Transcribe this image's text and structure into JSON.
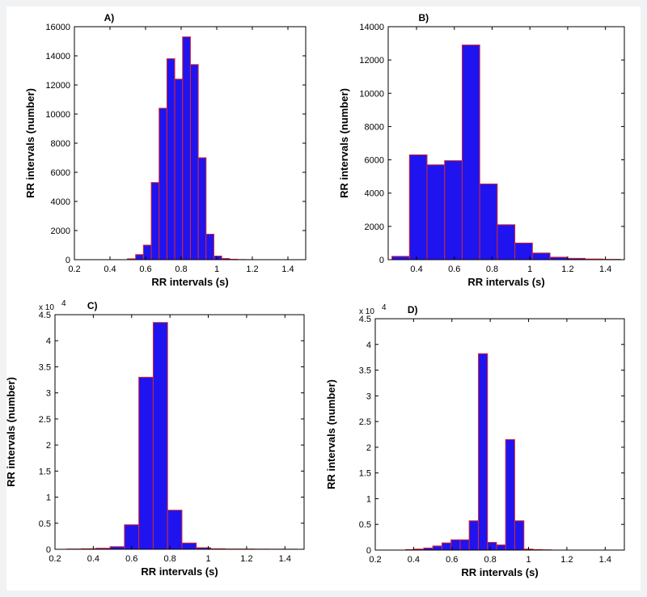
{
  "colors": {
    "bar_fill": "#1f14f0",
    "bar_edge": "#d8282a",
    "axis": "#000000",
    "background": "#ffffff"
  },
  "chart_data": [
    {
      "type": "bar",
      "title": "A)",
      "xlabel": "RR intervals (s)",
      "ylabel": "RR intervals (number)",
      "xlim": [
        0.2,
        1.5
      ],
      "ylim": [
        0,
        16000
      ],
      "xticks": [
        0.2,
        0.4,
        0.6,
        0.8,
        1,
        1.2,
        1.4
      ],
      "xtick_labels": [
        "0.2",
        "0.4",
        "0.6",
        "0.8",
        "1",
        "1.2",
        "1.4"
      ],
      "yticks": [
        0,
        2000,
        4000,
        6000,
        8000,
        10000,
        12000,
        14000,
        16000
      ],
      "ytick_labels": [
        "0",
        "2000",
        "4000",
        "6000",
        "8000",
        "10000",
        "12000",
        "14000",
        "16000"
      ],
      "y_exponent": "",
      "bin_width": 0.044,
      "x": [
        0.52,
        0.566,
        0.61,
        0.654,
        0.698,
        0.742,
        0.786,
        0.83,
        0.874,
        0.918,
        0.962,
        1.006,
        1.05,
        1.094,
        1.138,
        1.182
      ],
      "values": [
        60,
        350,
        1000,
        5300,
        10400,
        13800,
        12400,
        15300,
        13400,
        7000,
        1750,
        250,
        80,
        30,
        10,
        5
      ],
      "grid": false
    },
    {
      "type": "bar",
      "title": "B)",
      "xlabel": "RR intervals (s)",
      "ylabel": "RR intervals (number)",
      "xlim": [
        0.25,
        1.5
      ],
      "ylim": [
        0,
        14000
      ],
      "xticks": [
        0.2,
        0.4,
        0.6,
        0.8,
        1,
        1.2,
        1.4
      ],
      "xtick_labels": [
        "0.2",
        "0.4",
        "0.6",
        "0.8",
        "1",
        "1.2",
        "1.4"
      ],
      "yticks": [
        0,
        2000,
        4000,
        6000,
        8000,
        10000,
        12000,
        14000
      ],
      "ytick_labels": [
        "0",
        "2000",
        "4000",
        "6000",
        "8000",
        "10000",
        "12000",
        "14000"
      ],
      "y_exponent": "",
      "bin_width": 0.093,
      "x": [
        0.316,
        0.409,
        0.502,
        0.595,
        0.688,
        0.781,
        0.874,
        0.967,
        1.06,
        1.153,
        1.246,
        1.339,
        1.432
      ],
      "values": [
        200,
        6300,
        5700,
        5950,
        12900,
        4550,
        2100,
        1000,
        400,
        150,
        80,
        40,
        20
      ],
      "grid": false
    },
    {
      "type": "bar",
      "title": "C)",
      "xlabel": "RR intervals (s)",
      "ylabel": "RR intervals (number)",
      "xlim": [
        0.2,
        1.5
      ],
      "ylim": [
        0,
        4.5
      ],
      "xticks": [
        0.2,
        0.4,
        0.6,
        0.8,
        1,
        1.2,
        1.4
      ],
      "xtick_labels": [
        "0.2",
        "0.4",
        "0.6",
        "0.8",
        "1",
        "1.2",
        "1.4"
      ],
      "yticks": [
        0,
        0.5,
        1,
        1.5,
        2,
        2.5,
        3,
        3.5,
        4,
        4.5
      ],
      "ytick_labels": [
        "0",
        "0.5",
        "1",
        "1.5",
        "2",
        "2.5",
        "3",
        "3.5",
        "4",
        "4.5"
      ],
      "y_exponent": "x 10",
      "y_exponent_power": "4",
      "bin_width": 0.075,
      "x": [
        0.3,
        0.375,
        0.45,
        0.525,
        0.6,
        0.675,
        0.75,
        0.825,
        0.9,
        0.975,
        1.05,
        1.125,
        1.2,
        1.275,
        1.35,
        1.425
      ],
      "values": [
        0.005,
        0.01,
        0.02,
        0.05,
        0.47,
        3.3,
        4.35,
        0.75,
        0.12,
        0.03,
        0.01,
        0.005,
        0.005,
        0.003,
        0.002,
        0.002
      ],
      "grid": false
    },
    {
      "type": "bar",
      "title": "D)",
      "xlabel": "RR intervals (s)",
      "ylabel": "RR intervals (number)",
      "xlim": [
        0.2,
        1.5
      ],
      "ylim": [
        0,
        4.5
      ],
      "xticks": [
        0.2,
        0.4,
        0.6,
        0.8,
        1,
        1.2,
        1.4
      ],
      "xtick_labels": [
        "0.2",
        "0.4",
        "0.6",
        "0.8",
        "1",
        "1.2",
        "1.4"
      ],
      "yticks": [
        0,
        0.5,
        1,
        1.5,
        2,
        2.5,
        3,
        3.5,
        4,
        4.5
      ],
      "ytick_labels": [
        "0",
        "0.5",
        "1",
        "1.5",
        "2",
        "2.5",
        "3",
        "3.5",
        "4",
        "4.5"
      ],
      "y_exponent": "x 10",
      "y_exponent_power": "4",
      "bin_width": 0.0475,
      "x": [
        0.382,
        0.429,
        0.477,
        0.524,
        0.572,
        0.619,
        0.667,
        0.714,
        0.762,
        0.809,
        0.857,
        0.904,
        0.952,
        0.999,
        1.047,
        1.094
      ],
      "values": [
        0.01,
        0.02,
        0.04,
        0.08,
        0.14,
        0.2,
        0.2,
        0.57,
        3.82,
        0.15,
        0.1,
        2.15,
        0.57,
        0.02,
        0.01,
        0.005
      ],
      "grid": false
    }
  ]
}
